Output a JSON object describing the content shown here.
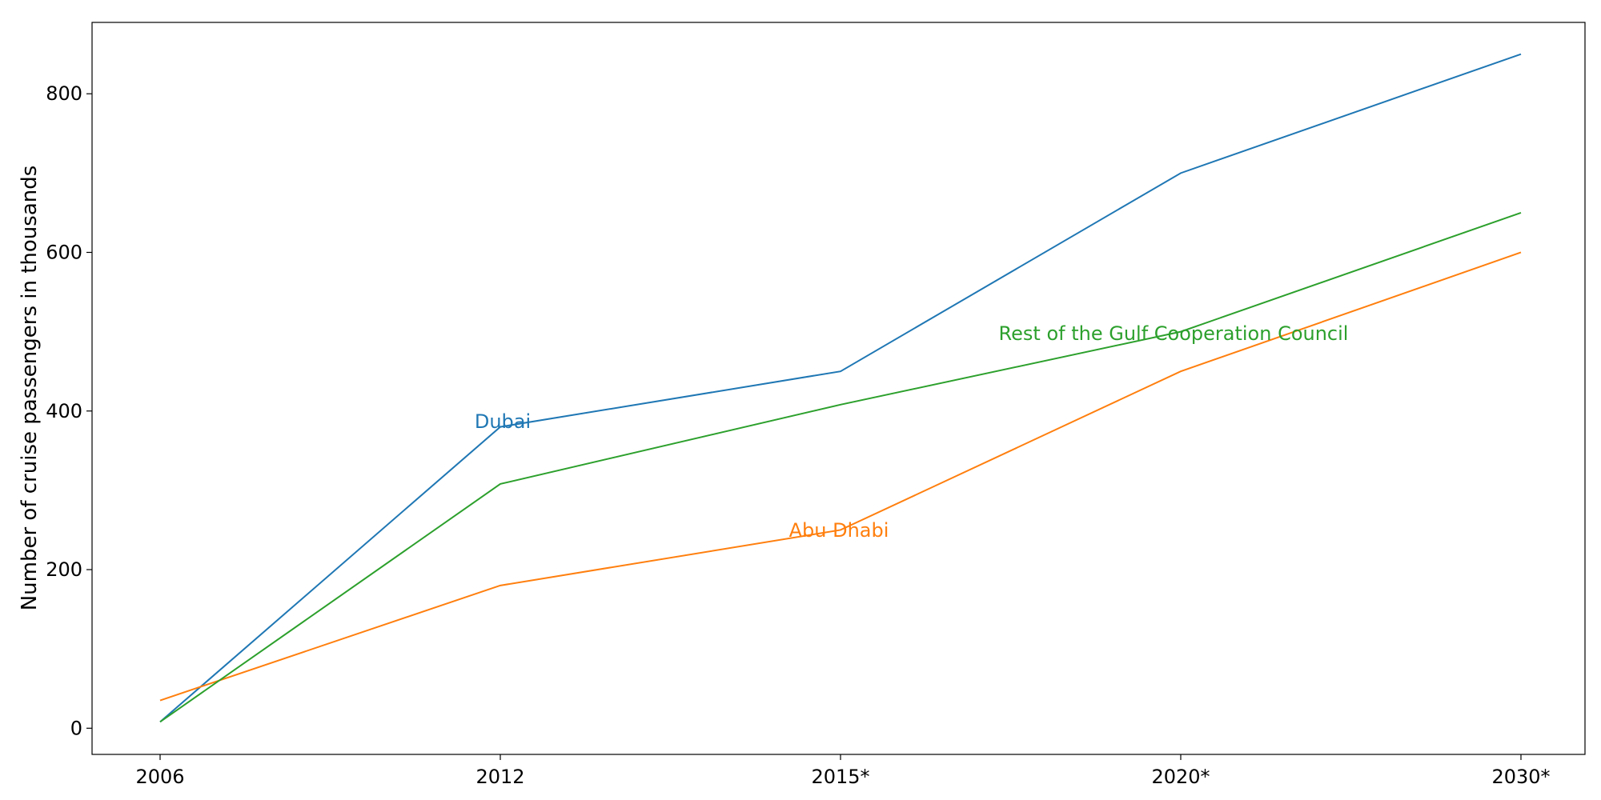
{
  "chart_data": {
    "type": "line",
    "title": "",
    "xlabel": "",
    "ylabel": "Number of cruise passengers in thousands",
    "categories": [
      "2006",
      "2012",
      "2015*",
      "2020*",
      "2030*"
    ],
    "ylim": [
      -33,
      890
    ],
    "yticks": [
      0,
      200,
      400,
      600,
      800
    ],
    "grid": false,
    "legend": "none",
    "series": [
      {
        "name": "Dubai",
        "color": "#1f77b4",
        "values": [
          8,
          380,
          450,
          700,
          850
        ]
      },
      {
        "name": "Abu Dhabi",
        "color": "#ff7f0e",
        "values": [
          35,
          180,
          250,
          450,
          600
        ]
      },
      {
        "name": "Rest of the Gulf Cooperation Council",
        "color": "#2ca02c",
        "values": [
          8,
          308,
          408,
          500,
          650
        ]
      }
    ]
  }
}
